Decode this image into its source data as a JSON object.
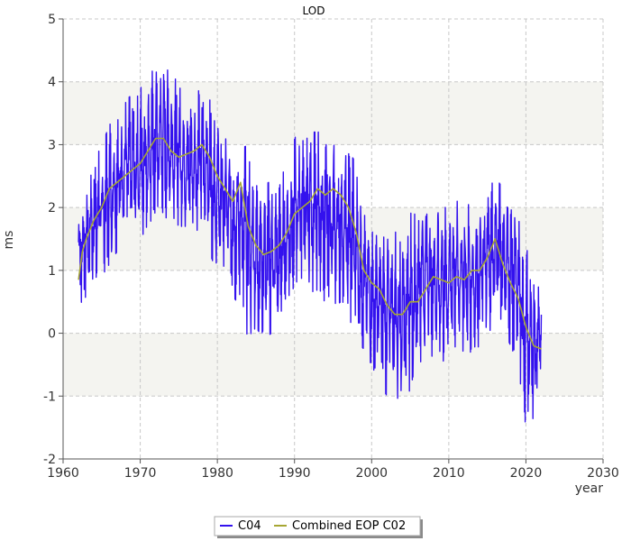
{
  "chart_data": {
    "type": "line",
    "title": "LOD",
    "xlabel": "year",
    "ylabel": "ms",
    "xlim": [
      1960,
      2030
    ],
    "ylim": [
      -2,
      5
    ],
    "xticks": [
      "1960",
      "1970",
      "1980",
      "1990",
      "2000",
      "2010",
      "2020",
      "2030"
    ],
    "yticks": [
      "-2",
      "-1",
      "0",
      "1",
      "2",
      "3",
      "4",
      "5"
    ],
    "grid": true,
    "legend_position": "bottom-center",
    "series": [
      {
        "name": "C04",
        "color": "#3311ee",
        "role": "raw daily values with seasonal oscillation",
        "envelope": {
          "x": [
            1962.0,
            1963,
            1964,
            1965,
            1966,
            1967,
            1968,
            1969,
            1970,
            1971,
            1972,
            1973,
            1974,
            1975,
            1976,
            1977,
            1978,
            1979,
            1980,
            1981,
            1982,
            1983,
            1984,
            1985,
            1986,
            1987,
            1988,
            1989,
            1990,
            1991,
            1992,
            1993,
            1994,
            1995,
            1996,
            1997,
            1998,
            1999,
            2000,
            2001,
            2002,
            2003,
            2004,
            2005,
            2006,
            2007,
            2008,
            2009,
            2010,
            2011,
            2012,
            2013,
            2014,
            2015,
            2016,
            2017,
            2018,
            2019,
            2020,
            2021,
            2022.0
          ],
          "max": [
            2.2,
            2.3,
            2.9,
            3.0,
            3.3,
            3.6,
            3.7,
            3.8,
            3.9,
            4.0,
            4.3,
            4.3,
            4.1,
            4.0,
            3.7,
            3.8,
            3.9,
            3.8,
            3.5,
            3.1,
            3.0,
            3.1,
            2.9,
            2.5,
            2.4,
            2.4,
            2.4,
            2.7,
            3.1,
            3.3,
            3.2,
            3.2,
            3.2,
            3.0,
            2.9,
            2.9,
            2.7,
            1.9,
            1.6,
            1.7,
            1.6,
            1.7,
            1.9,
            1.9,
            2.0,
            2.2,
            2.1,
            2.0,
            2.0,
            2.1,
            2.1,
            2.0,
            2.1,
            2.3,
            2.5,
            2.3,
            2.1,
            1.9,
            1.4,
            1.0,
            0.6
          ],
          "min": [
            0.3,
            0.6,
            0.7,
            0.9,
            1.1,
            1.3,
            1.5,
            1.5,
            1.5,
            1.7,
            1.8,
            1.8,
            1.9,
            1.7,
            1.7,
            1.6,
            1.7,
            1.3,
            0.9,
            1.1,
            0.6,
            0.4,
            -0.1,
            0.1,
            -0.1,
            0.0,
            0.0,
            0.4,
            0.6,
            0.9,
            0.7,
            0.6,
            0.5,
            0.4,
            0.5,
            0.2,
            0.1,
            -0.3,
            -0.5,
            -0.8,
            -1.0,
            -1.0,
            -1.1,
            -0.9,
            -0.6,
            -0.2,
            -0.4,
            -0.5,
            -0.3,
            -0.2,
            -0.3,
            -0.3,
            -0.2,
            -0.1,
            0.3,
            0.1,
            -0.2,
            -0.6,
            -1.5,
            -1.4,
            -0.5
          ]
        }
      },
      {
        "name": "Combined EOP C02",
        "color": "#a6a633",
        "role": "smoothed trend",
        "x": [
          1962.0,
          1962.5,
          1963,
          1964,
          1965,
          1966,
          1967,
          1968,
          1969,
          1970,
          1971,
          1972,
          1973,
          1974,
          1975,
          1976,
          1977,
          1978,
          1979,
          1980,
          1981,
          1982,
          1983,
          1984,
          1985,
          1986,
          1987,
          1988,
          1989,
          1990,
          1991,
          1992,
          1993,
          1994,
          1995,
          1996,
          1997,
          1998,
          1999,
          2000,
          2001,
          2002,
          2003,
          2004,
          2005,
          2006,
          2007,
          2008,
          2009,
          2010,
          2011,
          2012,
          2013,
          2014,
          2015,
          2016,
          2017,
          2018,
          2019,
          2020,
          2021,
          2022.0
        ],
        "y": [
          0.85,
          1.3,
          1.5,
          1.8,
          2.0,
          2.3,
          2.4,
          2.5,
          2.6,
          2.7,
          2.9,
          3.1,
          3.1,
          2.9,
          2.8,
          2.85,
          2.9,
          3.0,
          2.8,
          2.5,
          2.3,
          2.1,
          2.4,
          1.7,
          1.4,
          1.25,
          1.3,
          1.4,
          1.6,
          1.9,
          2.0,
          2.1,
          2.3,
          2.2,
          2.3,
          2.2,
          2.0,
          1.6,
          1.0,
          0.8,
          0.7,
          0.45,
          0.3,
          0.3,
          0.5,
          0.5,
          0.7,
          0.9,
          0.85,
          0.8,
          0.9,
          0.85,
          1.0,
          1.0,
          1.2,
          1.5,
          1.1,
          0.8,
          0.55,
          0.1,
          -0.2,
          -0.25
        ]
      }
    ]
  }
}
